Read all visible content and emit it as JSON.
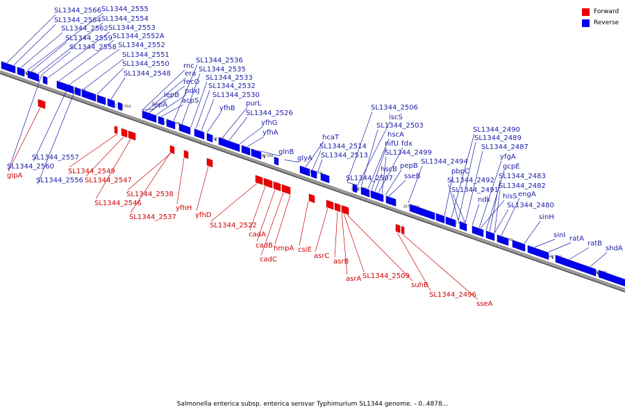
{
  "caption": "Salmonella enterica subsp. enterica serovar Typhimurium SL1344 genome. - 0..4878...",
  "legend": {
    "forward": {
      "label": "Forward",
      "color": "#ee0000"
    },
    "reverse": {
      "label": "Reverse",
      "color": "#0000ee"
    }
  },
  "ticks": [
    "2750 kbp",
    "2740 kbp",
    "2730 kbp",
    "2720 kbp",
    "2710 kbp",
    "2700 kbp",
    "2690 kbp",
    "2680 kbp",
    "2670 kbp",
    "2660 kbp",
    "2650 kbp",
    "2640 kbp",
    "2630 kbp"
  ],
  "reverse_labels": [
    "SL1344_2566",
    "SL1344_2555",
    "SL1344_2564",
    "SL1344_2554",
    "SL1344_2562",
    "SL1344_2553",
    "SL1344_2559",
    "SL1344_2552A",
    "SL1344_2558",
    "SL1344_2552",
    "SL1344_2551",
    "SL1344_2550",
    "SL1344_2548",
    "rnc",
    "era",
    "recO",
    "pdxJ",
    "acpS",
    "lepB",
    "lepA",
    "SL1344_2536",
    "SL1344_2535",
    "SL1344_2533",
    "SL1344_2532",
    "SL1344_2530",
    "yfhB",
    "purL",
    "SL1344_2526",
    "yfhG",
    "yfhA",
    "glnB",
    "glyA",
    "hcaT",
    "SL1344_2514",
    "SL1344_2513",
    "SL1344_2506",
    "iscS",
    "SL1344_2503",
    "hscA",
    "nifU",
    "fdx",
    "SL1344_2499",
    "hscB",
    "pepB",
    "sseB",
    "SL1344_2507",
    "SL1344_2494",
    "pbpC",
    "SL1344_2490",
    "SL1344_2489",
    "SL1344_2487",
    "yfgA",
    "gcpE",
    "SL1344_2483",
    "SL1344_2482",
    "engA",
    "SL1344_2492",
    "SL1344_2491",
    "ndk",
    "hisS",
    "SL1344_2480",
    "sinH",
    "sinI",
    "ratA",
    "ratB",
    "shdA",
    "SL1344_2557",
    "SL1344_2560",
    "SL1344_2556"
  ],
  "forward_labels": [
    "gipA",
    "SL1344_2549",
    "SL1344_2547",
    "SL1344_2546",
    "SL1344_2538",
    "SL1344_2537",
    "yfhH",
    "yfhD",
    "SL1344_2522",
    "cadA",
    "cadB",
    "cadC",
    "hmpA",
    "csiE",
    "asrC",
    "asrB",
    "asrA",
    "SL1344_2509",
    "suhB",
    "SL1344_2496",
    "sseA"
  ]
}
